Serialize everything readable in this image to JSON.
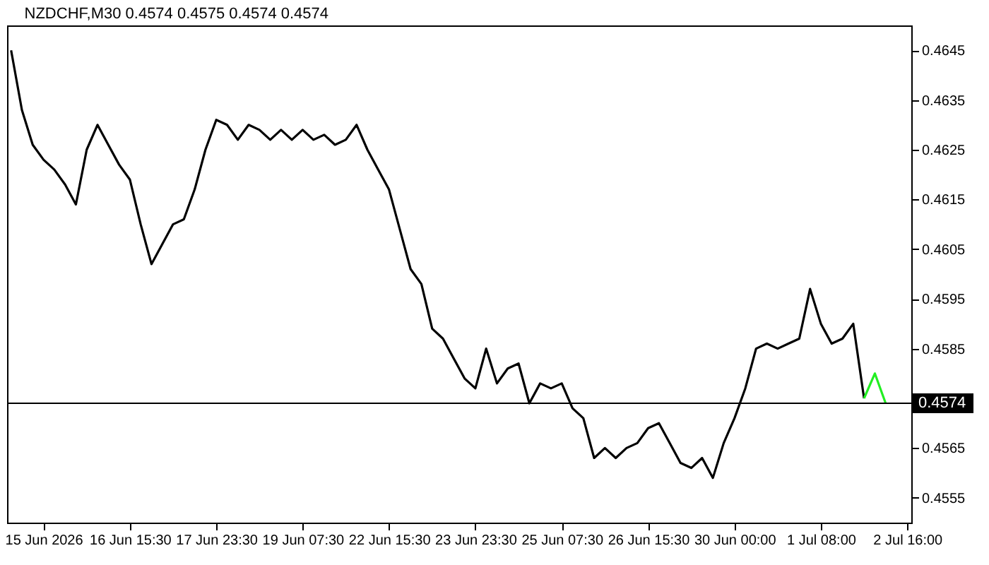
{
  "chart_data": {
    "type": "line",
    "title": "NZDCHF,M30  0.4574 0.4575 0.4574 0.4574",
    "categories": [
      null,
      null,
      null,
      "15 Jun 2026",
      null,
      null,
      null,
      null,
      null,
      null,
      null,
      "16 Jun 15:30",
      null,
      null,
      null,
      null,
      null,
      null,
      null,
      "17 Jun 23:30",
      null,
      null,
      null,
      null,
      null,
      null,
      null,
      "19 Jun 07:30",
      null,
      null,
      null,
      null,
      null,
      null,
      null,
      "22 Jun 15:30",
      null,
      null,
      null,
      null,
      null,
      null,
      null,
      "23 Jun 23:30",
      null,
      null,
      null,
      null,
      null,
      null,
      null,
      "25 Jun 07:30",
      null,
      null,
      null,
      null,
      null,
      null,
      null,
      "26 Jun 15:30",
      null,
      null,
      null,
      null,
      null,
      null,
      null,
      "30 Jun 00:00",
      null,
      null,
      null,
      null,
      null,
      null,
      null,
      "1 Jul 08:00",
      null,
      null,
      null,
      null,
      null,
      null,
      null,
      "2 Jul 16:00"
    ],
    "series": [
      {
        "color": "#000000",
        "values": [
          0.4645,
          0.4633,
          0.4626,
          0.4623,
          0.4621,
          0.4618,
          0.4614,
          0.4625,
          0.463,
          0.4626,
          0.4622,
          0.4619,
          0.461,
          0.4602,
          0.4606,
          0.461,
          0.4611,
          0.4617,
          0.4625,
          0.4631,
          0.463,
          0.4627,
          0.463,
          0.4629,
          0.4627,
          0.4629,
          0.4627,
          0.4629,
          0.4627,
          0.4628,
          0.4626,
          0.4627,
          0.463,
          0.4625,
          0.4621,
          0.4617,
          0.4609,
          0.4601,
          0.4598,
          0.4589,
          0.4587,
          0.4583,
          0.4579,
          0.4577,
          0.4585,
          0.4578,
          0.4581,
          0.4582,
          0.4574,
          0.4578,
          0.4577,
          0.4578,
          0.4573,
          0.4571,
          0.4563,
          0.4565,
          0.4563,
          0.4565,
          0.4566,
          0.4569,
          0.457,
          0.4566,
          0.4562,
          0.4561,
          0.4563,
          0.4559,
          0.4566,
          0.4571,
          0.4577,
          0.4585,
          0.4586,
          0.4585,
          0.4586,
          0.4587,
          0.4597,
          0.459,
          0.4586,
          0.4587,
          0.459,
          0.4575,
          null,
          null,
          null,
          null
        ]
      },
      {
        "color": "#22ee22",
        "values": [
          null,
          null,
          null,
          null,
          null,
          null,
          null,
          null,
          null,
          null,
          null,
          null,
          null,
          null,
          null,
          null,
          null,
          null,
          null,
          null,
          null,
          null,
          null,
          null,
          null,
          null,
          null,
          null,
          null,
          null,
          null,
          null,
          null,
          null,
          null,
          null,
          null,
          null,
          null,
          null,
          null,
          null,
          null,
          null,
          null,
          null,
          null,
          null,
          null,
          null,
          null,
          null,
          null,
          null,
          null,
          null,
          null,
          null,
          null,
          null,
          null,
          null,
          null,
          null,
          null,
          null,
          null,
          null,
          null,
          null,
          null,
          null,
          null,
          null,
          null,
          null,
          null,
          null,
          null,
          0.4575,
          0.458,
          0.4574,
          null,
          null
        ]
      }
    ],
    "ylim": [
      0.455,
      0.465
    ],
    "yticks": [
      0.4555,
      0.4565,
      0.4585,
      0.4595,
      0.4605,
      0.4615,
      0.4625,
      0.4635,
      0.4645
    ],
    "ref_lines": [
      {
        "axis": "y",
        "value": 0.4574,
        "label": "0.4574",
        "color": "#000000"
      }
    ],
    "grid": false
  }
}
